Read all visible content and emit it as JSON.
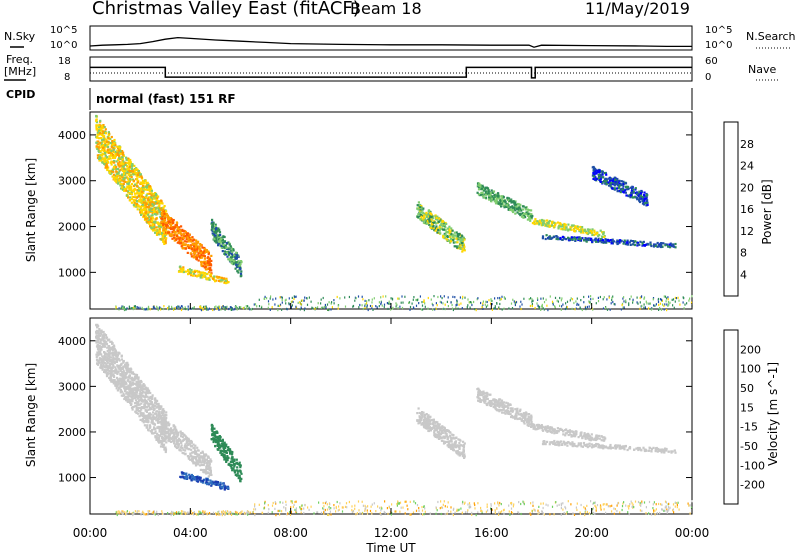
{
  "header": {
    "site": "Christmas Valley East (fitACF)",
    "beam": "Beam 18",
    "date": "11/May/2019"
  },
  "left_labels": {
    "nsky": "N.Sky",
    "freq_line1": "Freq.",
    "freq_line2": "[MHz]",
    "cpid": "CPID"
  },
  "right_labels": {
    "nsearch": "N.Search",
    "nave": "Nave"
  },
  "cpid_text": "normal (fast) 151 RF",
  "colors": {
    "noise_line": "#000000",
    "missing_scatter": "#808080"
  },
  "chart_data": [
    {
      "type": "line",
      "panel": "noise",
      "ylabel_left": "N.Sky",
      "ylabel_right": "N.Search",
      "ytick_labels_left": [
        "10^5",
        "10^0"
      ],
      "ytick_labels_right": [
        "10^5",
        "10^0"
      ],
      "series": [
        {
          "name": "N.Sky",
          "x_hours": [
            0,
            0.5,
            1,
            1.5,
            2,
            2.5,
            3,
            3.5,
            4,
            5,
            6,
            7,
            8,
            10,
            12,
            14,
            16,
            17.5,
            17.7,
            18,
            20,
            22,
            23,
            24
          ],
          "values_log10": [
            0.5,
            0.7,
            0.8,
            0.9,
            1.1,
            1.6,
            2.2,
            2.6,
            2.4,
            2.0,
            1.7,
            1.4,
            1.1,
            0.9,
            0.8,
            0.8,
            0.7,
            0.7,
            0.2,
            0.7,
            0.6,
            0.5,
            0.4,
            0.4
          ]
        }
      ],
      "ylim_log10": [
        0,
        5
      ]
    },
    {
      "type": "line",
      "panel": "frequency",
      "ylabel_left": "Freq. [MHz]",
      "ylabel_right": "Nave",
      "ytick_labels_left": [
        "18",
        "8"
      ],
      "ytick_labels_right": [
        "60",
        "0"
      ],
      "series": [
        {
          "name": "Freq.",
          "x_hours": [
            0,
            3,
            3,
            15,
            15,
            17.6,
            17.6,
            17.75,
            17.75,
            24
          ],
          "values": [
            14.0,
            14.0,
            9.4,
            9.4,
            14.0,
            14.0,
            9.0,
            9.0,
            14.0,
            14.0
          ]
        },
        {
          "name": "Nave",
          "x_hours": [
            0,
            24
          ],
          "values": [
            20,
            20
          ]
        }
      ],
      "ylim_left": [
        8,
        18
      ],
      "ylim_right": [
        0,
        60
      ]
    },
    {
      "type": "heatmap",
      "panel": "power",
      "xlabel": "",
      "ylabel": "Slant Range [km]",
      "ylim": [
        200,
        4500
      ],
      "yticks": [
        1000,
        2000,
        3000,
        4000
      ],
      "xlim_hours": [
        0,
        24
      ],
      "colorbar": {
        "label": "Power [dB]",
        "ticks": [
          "28",
          "24",
          "20",
          "16",
          "12",
          "8",
          "4"
        ],
        "colors": [
          "#e60000",
          "#ff5a00",
          "#ff9f00",
          "#ffd700",
          "#7fcc6e",
          "#2e8b57",
          "#1f4fa6",
          "#0000ff"
        ]
      },
      "blobs": [
        {
          "x": [
            0.2,
            3.0
          ],
          "y": [
            4000,
            2000
          ],
          "value": 18
        },
        {
          "x": [
            2.8,
            4.8
          ],
          "y": [
            2200,
            1200
          ],
          "value": 24
        },
        {
          "x": [
            3.5,
            5.5
          ],
          "y": [
            1100,
            800
          ],
          "value": 18
        },
        {
          "x": [
            4.8,
            6.0
          ],
          "y": [
            2000,
            1100
          ],
          "value": 10
        },
        {
          "x": [
            13.0,
            14.9
          ],
          "y": [
            2400,
            1600
          ],
          "value": 14
        },
        {
          "x": [
            15.4,
            17.6
          ],
          "y": [
            2850,
            2250
          ],
          "value": 12
        },
        {
          "x": [
            17.6,
            20.5
          ],
          "y": [
            2150,
            1850
          ],
          "value": 16
        },
        {
          "x": [
            18.0,
            23.3
          ],
          "y": [
            1800,
            1600
          ],
          "value": 6
        },
        {
          "x": [
            20.0,
            22.2
          ],
          "y": [
            3200,
            2600
          ],
          "value": 6
        }
      ]
    },
    {
      "type": "heatmap",
      "panel": "velocity",
      "xlabel": "Time UT",
      "ylabel": "Slant Range [km]",
      "ylim": [
        200,
        4500
      ],
      "yticks": [
        1000,
        2000,
        3000,
        4000
      ],
      "xlim_hours": [
        0,
        24
      ],
      "xtick_labels": [
        "00:00",
        "04:00",
        "08:00",
        "12:00",
        "16:00",
        "20:00",
        "00:00"
      ],
      "colorbar": {
        "label": "Velocity [m s^-1]",
        "ticks": [
          "200",
          "100",
          "50",
          "15",
          "-15",
          "-50",
          "-100",
          "-200"
        ],
        "colors": [
          "#1a3cb0",
          "#2f6fbf",
          "#2e8b57",
          "#6fd060",
          "#c8c8c8",
          "#ffd25a",
          "#ff9f00",
          "#ff5a00",
          "#e60000"
        ]
      },
      "blobs": [
        {
          "x": [
            0.2,
            3.0
          ],
          "y": [
            4000,
            2000
          ],
          "value": 0
        },
        {
          "x": [
            2.8,
            4.8
          ],
          "y": [
            2200,
            1200
          ],
          "value": 0
        },
        {
          "x": [
            3.5,
            5.5
          ],
          "y": [
            1100,
            800
          ],
          "value": 200
        },
        {
          "x": [
            4.8,
            6.0
          ],
          "y": [
            2000,
            1100
          ],
          "value": 60
        },
        {
          "x": [
            13.0,
            14.9
          ],
          "y": [
            2400,
            1600
          ],
          "value": 0
        },
        {
          "x": [
            15.4,
            17.6
          ],
          "y": [
            2850,
            2250
          ],
          "value": 0
        },
        {
          "x": [
            17.6,
            20.5
          ],
          "y": [
            2150,
            1850
          ],
          "value": 0
        },
        {
          "x": [
            18.0,
            23.3
          ],
          "y": [
            1800,
            1600
          ],
          "value": 0
        }
      ]
    }
  ]
}
